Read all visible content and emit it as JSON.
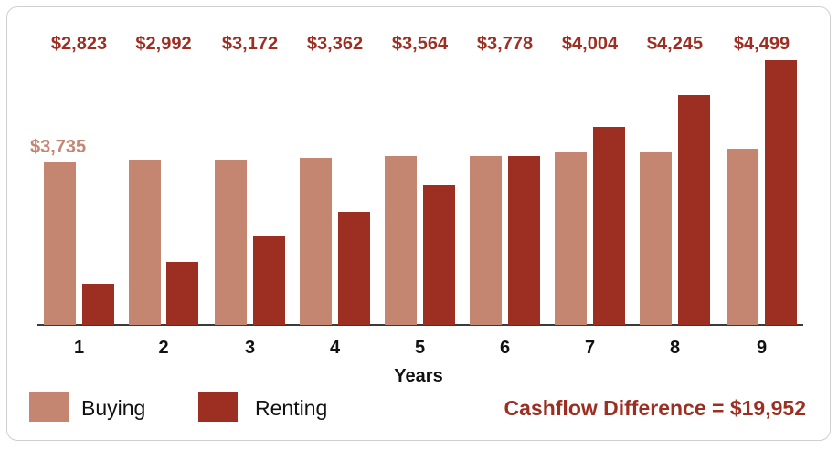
{
  "chart_data": {
    "type": "bar",
    "title": "",
    "xlabel": "Years",
    "ylabel": "",
    "categories": [
      "1",
      "2",
      "3",
      "4",
      "5",
      "6",
      "7",
      "8",
      "9"
    ],
    "series": [
      {
        "name": "Buying",
        "color": "#c48670",
        "values": [
          3735,
          3735,
          3735,
          3735,
          3735,
          3735,
          3735,
          3735,
          3735
        ]
      },
      {
        "name": "Renting",
        "color": "#9c2e22",
        "values": [
          2823,
          2992,
          3172,
          3362,
          3564,
          3778,
          4004,
          4245,
          4499
        ]
      }
    ],
    "data_labels": {
      "renting": [
        "$2,823",
        "$2,992",
        "$3,172",
        "$3,362",
        "$3,564",
        "$3,778",
        "$4,004",
        "$4,245",
        "$4,499"
      ],
      "buying_first": "$3,735"
    },
    "annotation": "Cashflow Difference = $19,952",
    "grid": false,
    "legend_position": "bottom-left"
  },
  "render": {
    "baseline_y": 356,
    "buy_tops": [
      177,
      175,
      175,
      173,
      171,
      171,
      167,
      166,
      163
    ],
    "rent_tops": [
      311,
      287,
      259,
      232,
      203,
      171,
      139,
      104,
      66
    ],
    "buy_lefts": [
      48,
      141,
      235,
      328,
      421,
      514,
      607,
      700,
      795
    ],
    "rent_lefts": [
      90,
      182,
      277,
      370,
      463,
      556,
      649,
      742,
      837
    ]
  },
  "legend": {
    "buying": "Buying",
    "renting": "Renting"
  },
  "footer": {
    "difference": "Cashflow Difference = $19,952"
  }
}
